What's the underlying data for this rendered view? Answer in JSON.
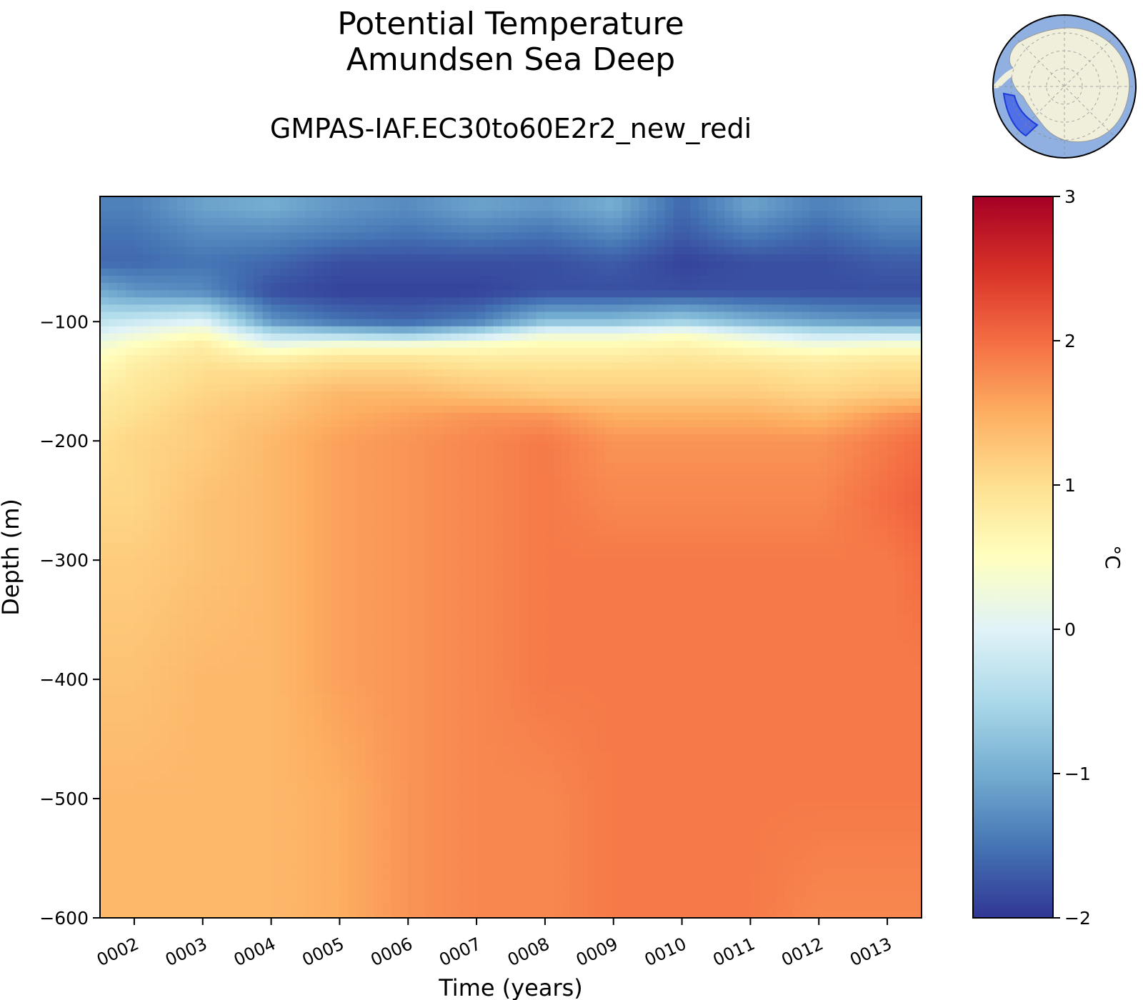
{
  "figure": {
    "title_lines": [
      "Potential Temperature",
      "Amundsen Sea Deep"
    ],
    "subtitle": "GMPAS-IAF.EC30to60E2r2_new_redi"
  },
  "colorbar": {
    "label": "°C",
    "ticks": [
      3,
      2,
      1,
      0,
      -1,
      -2
    ],
    "tick_labels": [
      "3",
      "2",
      "1",
      "0",
      "−1",
      "−2"
    ],
    "range": [
      -2,
      3
    ],
    "colormap": "RdYlBu_r",
    "stops": [
      "#313695",
      "#4575b4",
      "#74add1",
      "#abd9e9",
      "#e0f3f8",
      "#ffffbf",
      "#fee090",
      "#fdae61",
      "#f46d43",
      "#d73027",
      "#a50026"
    ]
  },
  "inset_map": {
    "ocean_color": "#8fb0e0",
    "land_color": "#efefdc",
    "region_color": "#3b5bea",
    "region_name": "Amundsen Sea"
  },
  "chart_data": {
    "type": "heatmap",
    "xlabel": "Time (years)",
    "ylabel": "Depth (m)",
    "xlim": [
      1.5,
      13.5
    ],
    "ylim": [
      -600,
      5
    ],
    "x_tick_labels": [
      "0002",
      "0003",
      "0004",
      "0005",
      "0006",
      "0007",
      "0008",
      "0009",
      "0010",
      "0011",
      "0012",
      "0013"
    ],
    "x_ticks": [
      2,
      3,
      4,
      5,
      6,
      7,
      8,
      9,
      10,
      11,
      12,
      13
    ],
    "y_ticks": [
      -100,
      -200,
      -300,
      -400,
      -500,
      -600
    ],
    "y_tick_labels": [
      "−100",
      "−200",
      "−300",
      "−400",
      "−500",
      "−600"
    ],
    "depths": [
      -5,
      -25,
      -50,
      -75,
      -100,
      -110,
      -120,
      -130,
      -140,
      -160,
      -180,
      -200,
      -250,
      -300,
      -400,
      -500,
      -600
    ],
    "times": [
      1.5,
      2,
      3,
      4,
      5,
      6,
      7,
      8,
      9,
      10,
      11,
      12,
      13,
      13.5
    ],
    "values": [
      [
        -1.4,
        -1.4,
        -1.1,
        -1.0,
        -1.2,
        -1.3,
        -1.1,
        -1.2,
        -1.0,
        -1.6,
        -1.1,
        -1.4,
        -1.2,
        -1.2
      ],
      [
        -1.5,
        -1.5,
        -1.3,
        -1.3,
        -1.4,
        -1.5,
        -1.4,
        -1.5,
        -1.3,
        -1.7,
        -1.4,
        -1.6,
        -1.4,
        -1.4
      ],
      [
        -1.6,
        -1.6,
        -1.5,
        -1.6,
        -1.8,
        -1.8,
        -1.8,
        -1.8,
        -1.7,
        -1.9,
        -1.8,
        -1.8,
        -1.7,
        -1.7
      ],
      [
        -1.0,
        -1.2,
        -1.3,
        -1.8,
        -1.9,
        -1.9,
        -1.9,
        -1.8,
        -1.8,
        -1.8,
        -1.8,
        -1.8,
        -1.8,
        -1.8
      ],
      [
        -0.3,
        -0.2,
        0.0,
        -1.2,
        -1.5,
        -1.6,
        -1.4,
        -0.8,
        -0.8,
        -0.6,
        -0.9,
        -1.1,
        -1.2,
        -1.2
      ],
      [
        0.0,
        0.2,
        0.5,
        -0.4,
        -0.6,
        -0.8,
        -0.4,
        0.2,
        0.2,
        0.4,
        0.0,
        -0.3,
        -0.3,
        -0.3
      ],
      [
        0.3,
        0.5,
        0.8,
        0.2,
        0.4,
        0.4,
        0.5,
        0.6,
        0.6,
        0.7,
        0.5,
        0.3,
        0.4,
        0.4
      ],
      [
        0.5,
        0.7,
        0.9,
        0.7,
        0.9,
        0.9,
        0.8,
        0.8,
        0.8,
        0.9,
        0.8,
        0.7,
        0.8,
        0.8
      ],
      [
        0.6,
        0.8,
        1.0,
        1.0,
        1.1,
        1.1,
        1.0,
        1.0,
        1.0,
        1.0,
        1.0,
        0.9,
        1.0,
        1.0
      ],
      [
        0.8,
        0.9,
        1.1,
        1.2,
        1.4,
        1.4,
        1.3,
        1.2,
        1.2,
        1.2,
        1.2,
        1.1,
        1.2,
        1.2
      ],
      [
        0.9,
        1.0,
        1.2,
        1.3,
        1.5,
        1.6,
        1.7,
        1.7,
        1.5,
        1.5,
        1.5,
        1.4,
        1.7,
        1.8
      ],
      [
        1.0,
        1.1,
        1.2,
        1.4,
        1.6,
        1.7,
        1.8,
        1.9,
        1.7,
        1.7,
        1.7,
        1.7,
        1.9,
        2.0
      ],
      [
        1.1,
        1.1,
        1.3,
        1.4,
        1.6,
        1.7,
        1.8,
        1.9,
        1.8,
        1.8,
        1.8,
        1.8,
        2.0,
        2.1
      ],
      [
        1.2,
        1.2,
        1.3,
        1.4,
        1.6,
        1.7,
        1.8,
        1.9,
        1.9,
        1.9,
        1.9,
        1.9,
        1.9,
        2.0
      ],
      [
        1.3,
        1.3,
        1.4,
        1.4,
        1.6,
        1.7,
        1.8,
        1.9,
        1.9,
        1.9,
        1.9,
        1.9,
        1.9,
        1.9
      ],
      [
        1.4,
        1.4,
        1.4,
        1.4,
        1.5,
        1.7,
        1.8,
        1.8,
        1.9,
        1.9,
        1.9,
        1.9,
        1.9,
        1.9
      ],
      [
        1.4,
        1.4,
        1.4,
        1.4,
        1.5,
        1.7,
        1.8,
        1.8,
        1.9,
        1.9,
        1.9,
        1.8,
        1.8,
        1.8
      ]
    ]
  }
}
